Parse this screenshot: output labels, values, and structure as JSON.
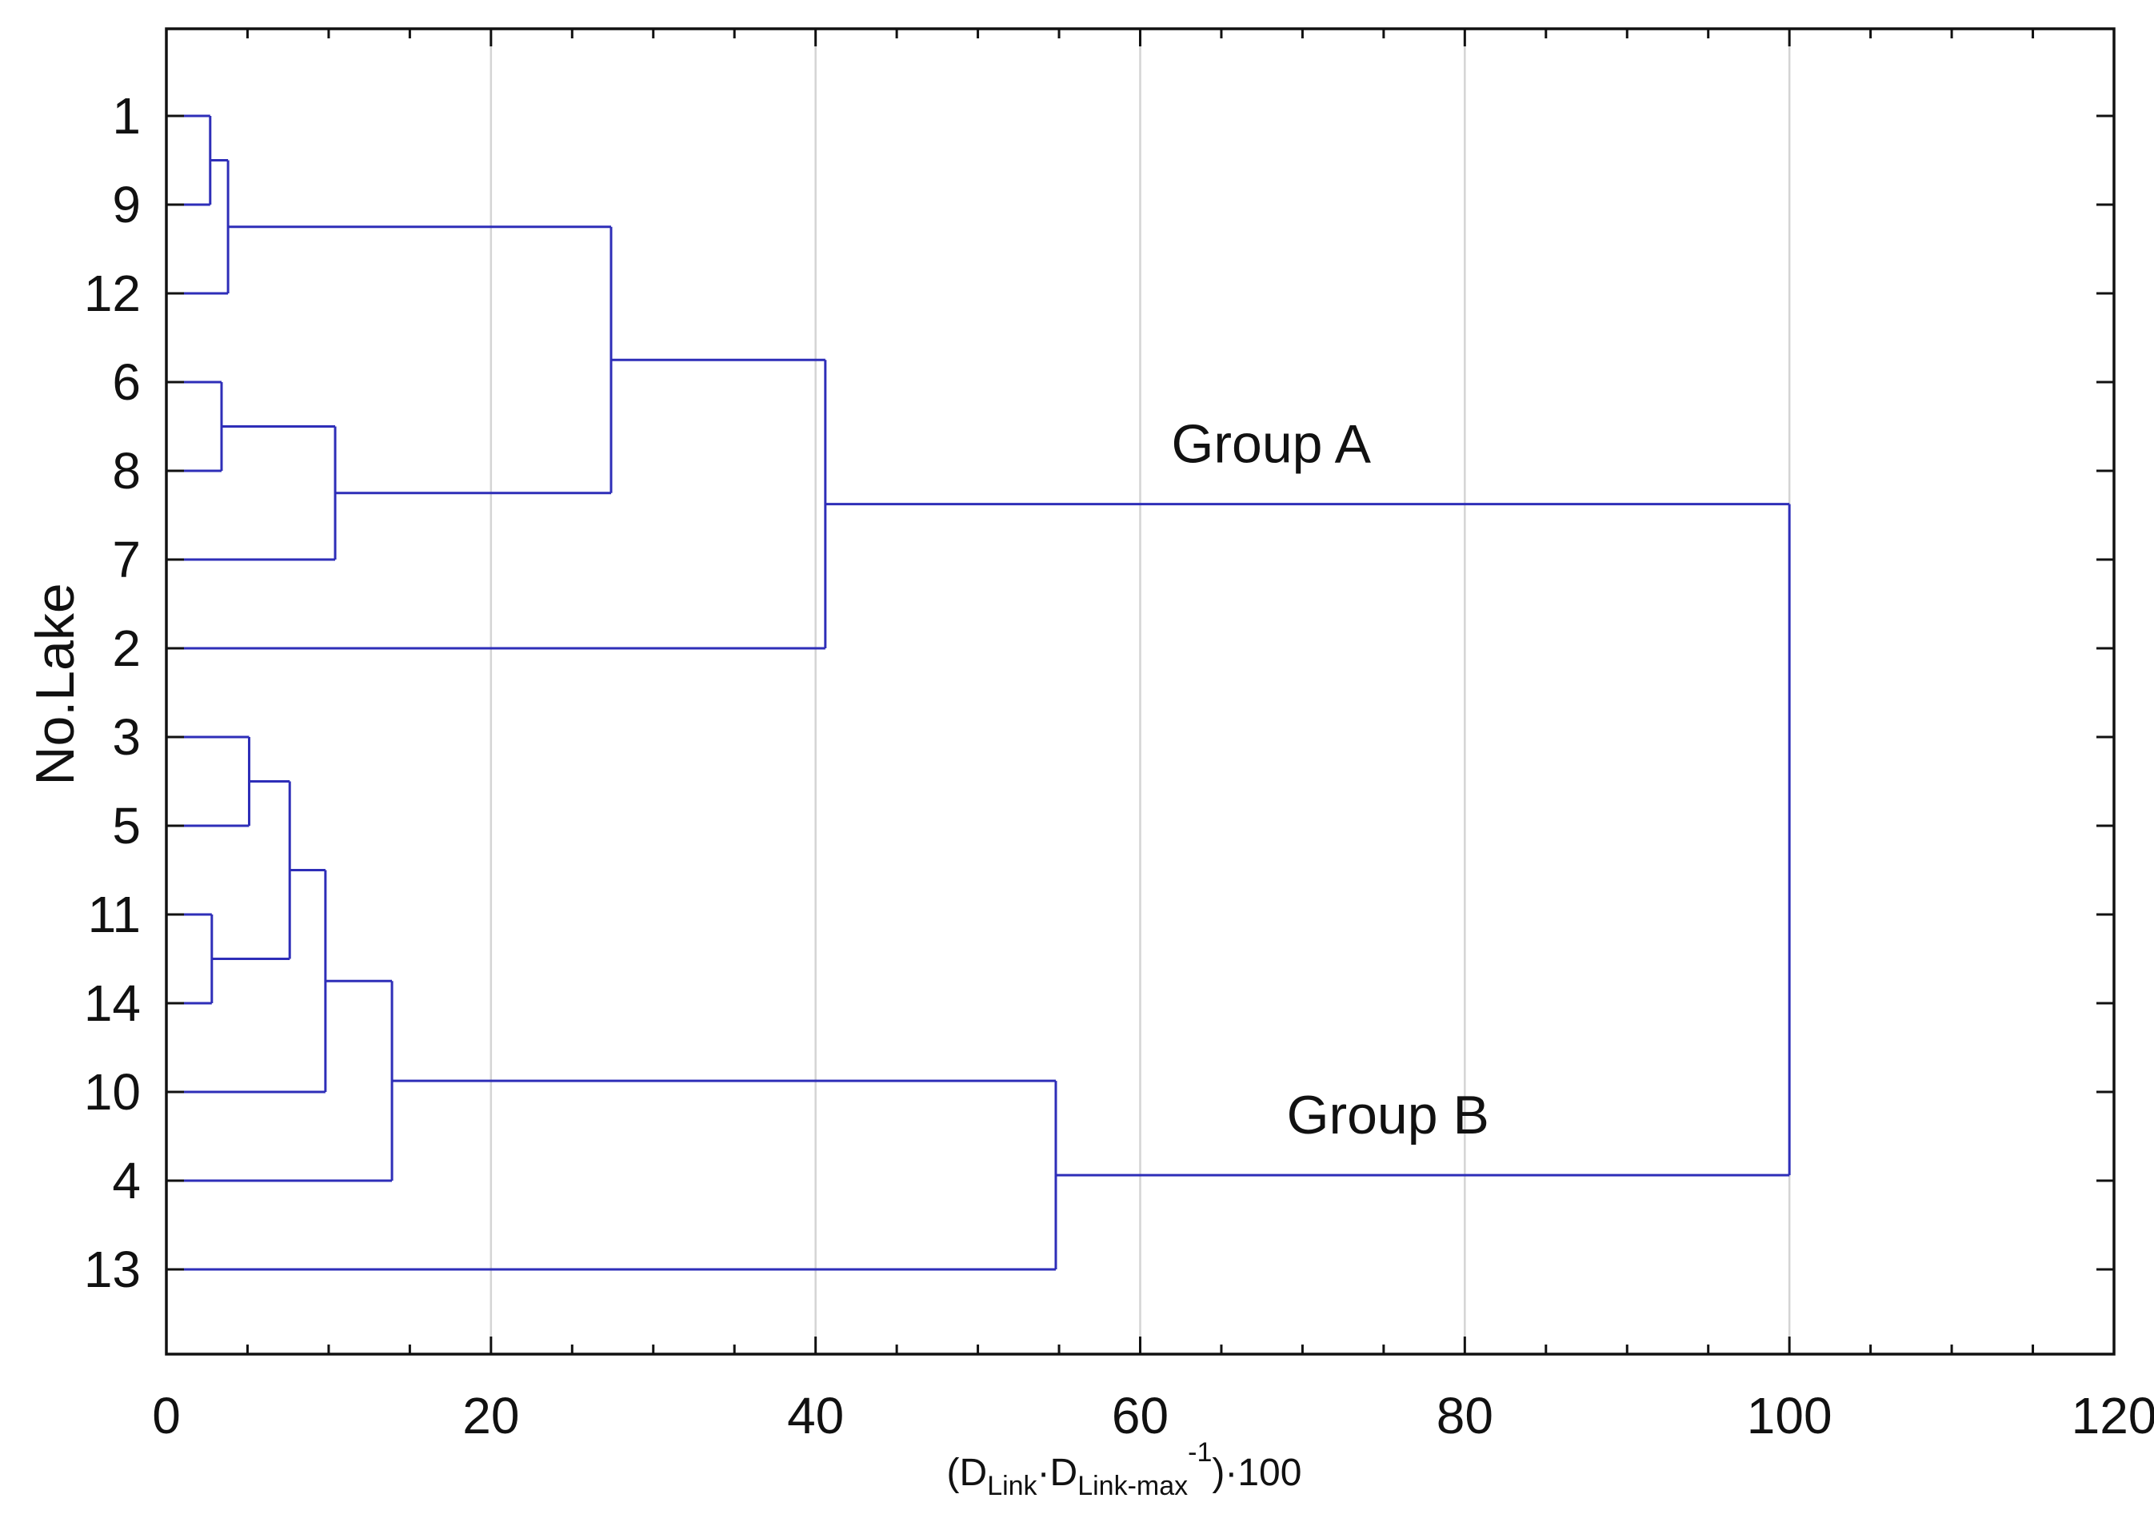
{
  "chart_data": {
    "type": "dendrogram",
    "title": "",
    "xlabel": {
      "parts": [
        "(D",
        "Link",
        "·D",
        "Link-max",
        "-1",
        ")·100"
      ]
    },
    "ylabel": "No.Lake",
    "xlim": [
      0,
      120
    ],
    "x_ticks": [
      0,
      20,
      40,
      60,
      80,
      100,
      120
    ],
    "grid": "vertical",
    "line_color": "#2e2eb8",
    "leaves": [
      "1",
      "9",
      "12",
      "6",
      "8",
      "7",
      "2",
      "3",
      "5",
      "11",
      "14",
      "10",
      "4",
      "13"
    ],
    "merges": [
      {
        "id": "m1",
        "children": [
          "1",
          "9"
        ],
        "distance": 2.7
      },
      {
        "id": "m2",
        "children": [
          "m1",
          "12"
        ],
        "distance": 3.8
      },
      {
        "id": "m3",
        "children": [
          "6",
          "8"
        ],
        "distance": 3.4
      },
      {
        "id": "m4",
        "children": [
          "m3",
          "7"
        ],
        "distance": 10.4
      },
      {
        "id": "m5",
        "children": [
          "m2",
          "m4"
        ],
        "distance": 27.4
      },
      {
        "id": "m6",
        "children": [
          "m5",
          "2"
        ],
        "distance": 40.6
      },
      {
        "id": "m7",
        "children": [
          "3",
          "5"
        ],
        "distance": 5.1
      },
      {
        "id": "m8",
        "children": [
          "11",
          "14"
        ],
        "distance": 2.8
      },
      {
        "id": "m9",
        "children": [
          "m7",
          "m8"
        ],
        "distance": 7.6
      },
      {
        "id": "m10",
        "children": [
          "m9",
          "10"
        ],
        "distance": 9.8
      },
      {
        "id": "m11",
        "children": [
          "m10",
          "4"
        ],
        "distance": 13.9
      },
      {
        "id": "m12",
        "children": [
          "m11",
          "13"
        ],
        "distance": 54.8
      },
      {
        "id": "m13",
        "children": [
          "m6",
          "m12"
        ],
        "distance": 100
      }
    ],
    "annotations": [
      {
        "text": "Group A",
        "merge": "m6"
      },
      {
        "text": "Group B",
        "merge": "m12"
      }
    ]
  }
}
